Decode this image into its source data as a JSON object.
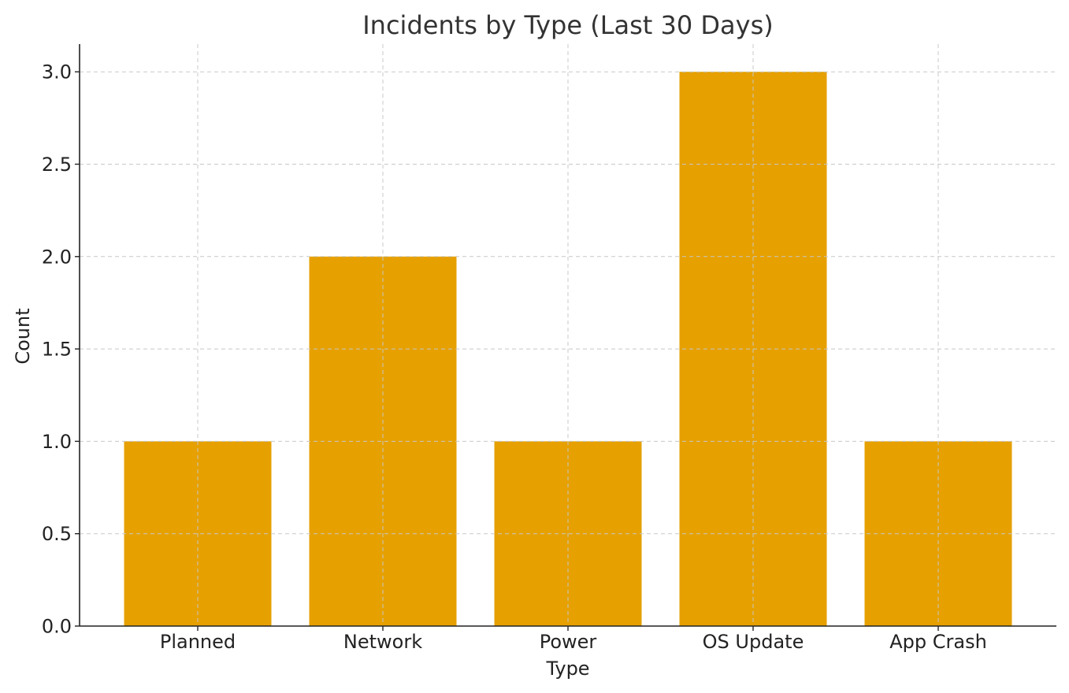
{
  "chart_data": {
    "type": "bar",
    "title": "Incidents by Type (Last 30 Days)",
    "xlabel": "Type",
    "ylabel": "Count",
    "categories": [
      "Planned",
      "Network",
      "Power",
      "OS Update",
      "App Crash"
    ],
    "values": [
      1,
      2,
      1,
      3,
      1
    ],
    "ylim": [
      0,
      3.15
    ],
    "yticks": [
      "0.0",
      "0.5",
      "1.0",
      "1.5",
      "2.0",
      "2.5",
      "3.0"
    ],
    "grid": true,
    "bar_color": "#e6a000"
  }
}
